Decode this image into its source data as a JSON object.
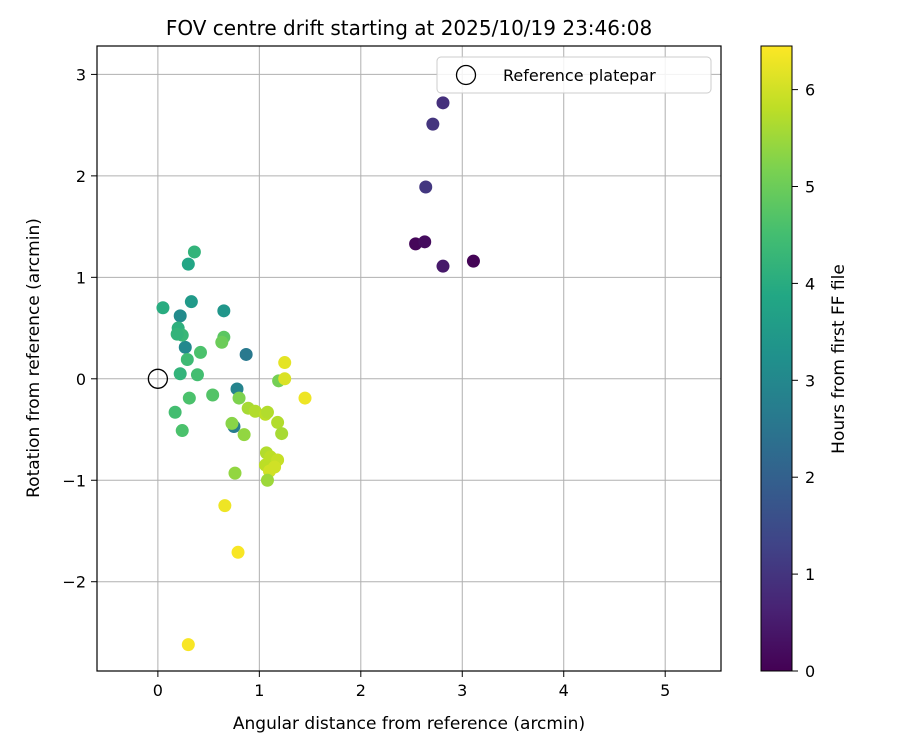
{
  "chart_data": {
    "type": "scatter",
    "title": "FOV centre drift starting at 2025/10/19 23:46:08",
    "xlabel": "Angular distance from reference (arcmin)",
    "ylabel": "Rotation from reference (arcmin)",
    "xlim": [
      -0.6,
      5.55
    ],
    "ylim": [
      -2.88,
      3.28
    ],
    "xticks": [
      0,
      1,
      2,
      3,
      4,
      5
    ],
    "yticks": [
      -2,
      -1,
      0,
      1,
      2,
      3
    ],
    "grid": true,
    "legend": {
      "position": "top-right",
      "entries": [
        "Reference platepar"
      ]
    },
    "reference_point": {
      "x": 0,
      "y": 0,
      "label": "Reference platepar"
    },
    "colorbar": {
      "label": "Hours from first FF file",
      "range": [
        0,
        6.45
      ],
      "ticks": [
        0,
        1,
        2,
        3,
        4,
        5,
        6
      ],
      "colormap": "viridis"
    },
    "points": [
      {
        "x": 3.11,
        "y": 1.16,
        "hours": 0.05
      },
      {
        "x": 2.54,
        "y": 1.33,
        "hours": 0.1
      },
      {
        "x": 2.63,
        "y": 1.35,
        "hours": 0.2
      },
      {
        "x": 2.81,
        "y": 1.11,
        "hours": 0.45
      },
      {
        "x": 2.64,
        "y": 1.89,
        "hours": 1.05
      },
      {
        "x": 2.71,
        "y": 2.51,
        "hours": 1.0
      },
      {
        "x": 2.81,
        "y": 2.72,
        "hours": 0.9
      },
      {
        "x": 0.87,
        "y": 0.24,
        "hours": 2.6
      },
      {
        "x": 0.78,
        "y": -0.1,
        "hours": 2.9
      },
      {
        "x": 0.75,
        "y": -0.47,
        "hours": 2.7
      },
      {
        "x": 0.27,
        "y": 0.31,
        "hours": 3.0
      },
      {
        "x": 0.22,
        "y": 0.62,
        "hours": 3.1
      },
      {
        "x": 0.65,
        "y": 0.67,
        "hours": 3.4
      },
      {
        "x": 0.33,
        "y": 0.76,
        "hours": 3.5
      },
      {
        "x": 0.3,
        "y": 1.13,
        "hours": 3.8
      },
      {
        "x": 0.36,
        "y": 1.25,
        "hours": 4.2
      },
      {
        "x": 0.05,
        "y": 0.7,
        "hours": 4.0
      },
      {
        "x": 0.2,
        "y": 0.5,
        "hours": 4.1
      },
      {
        "x": 0.24,
        "y": 0.43,
        "hours": 4.3
      },
      {
        "x": 0.19,
        "y": 0.44,
        "hours": 4.2
      },
      {
        "x": 0.29,
        "y": 0.19,
        "hours": 4.4
      },
      {
        "x": 0.22,
        "y": 0.05,
        "hours": 4.2
      },
      {
        "x": 0.39,
        "y": 0.04,
        "hours": 4.5
      },
      {
        "x": 0.42,
        "y": 0.26,
        "hours": 4.6
      },
      {
        "x": 0.65,
        "y": 0.41,
        "hours": 4.8
      },
      {
        "x": 0.63,
        "y": 0.36,
        "hours": 5.0
      },
      {
        "x": 0.17,
        "y": -0.33,
        "hours": 4.5
      },
      {
        "x": 0.31,
        "y": -0.19,
        "hours": 4.6
      },
      {
        "x": 0.24,
        "y": -0.51,
        "hours": 4.6
      },
      {
        "x": 0.54,
        "y": -0.16,
        "hours": 4.7
      },
      {
        "x": 0.8,
        "y": -0.19,
        "hours": 5.2
      },
      {
        "x": 0.73,
        "y": -0.44,
        "hours": 5.3
      },
      {
        "x": 0.85,
        "y": -0.55,
        "hours": 5.4
      },
      {
        "x": 0.76,
        "y": -0.93,
        "hours": 5.4
      },
      {
        "x": 1.19,
        "y": -0.02,
        "hours": 5.1
      },
      {
        "x": 0.89,
        "y": -0.29,
        "hours": 5.6
      },
      {
        "x": 0.96,
        "y": -0.32,
        "hours": 5.7
      },
      {
        "x": 1.06,
        "y": -0.35,
        "hours": 5.8
      },
      {
        "x": 1.08,
        "y": -0.33,
        "hours": 5.7
      },
      {
        "x": 1.18,
        "y": -0.43,
        "hours": 5.7
      },
      {
        "x": 1.22,
        "y": -0.54,
        "hours": 5.6
      },
      {
        "x": 1.07,
        "y": -0.73,
        "hours": 5.7
      },
      {
        "x": 1.11,
        "y": -0.77,
        "hours": 5.8
      },
      {
        "x": 1.18,
        "y": -0.8,
        "hours": 5.9
      },
      {
        "x": 1.06,
        "y": -0.85,
        "hours": 5.8
      },
      {
        "x": 1.1,
        "y": -0.91,
        "hours": 6.0
      },
      {
        "x": 1.15,
        "y": -0.87,
        "hours": 6.0
      },
      {
        "x": 1.08,
        "y": -1.0,
        "hours": 5.5
      },
      {
        "x": 1.25,
        "y": 0.16,
        "hours": 6.2
      },
      {
        "x": 1.25,
        "y": 0.0,
        "hours": 6.1
      },
      {
        "x": 1.45,
        "y": -0.19,
        "hours": 6.3
      },
      {
        "x": 0.66,
        "y": -1.25,
        "hours": 6.3
      },
      {
        "x": 0.79,
        "y": -1.71,
        "hours": 6.4
      },
      {
        "x": 0.3,
        "y": -2.62,
        "hours": 6.4
      }
    ]
  }
}
